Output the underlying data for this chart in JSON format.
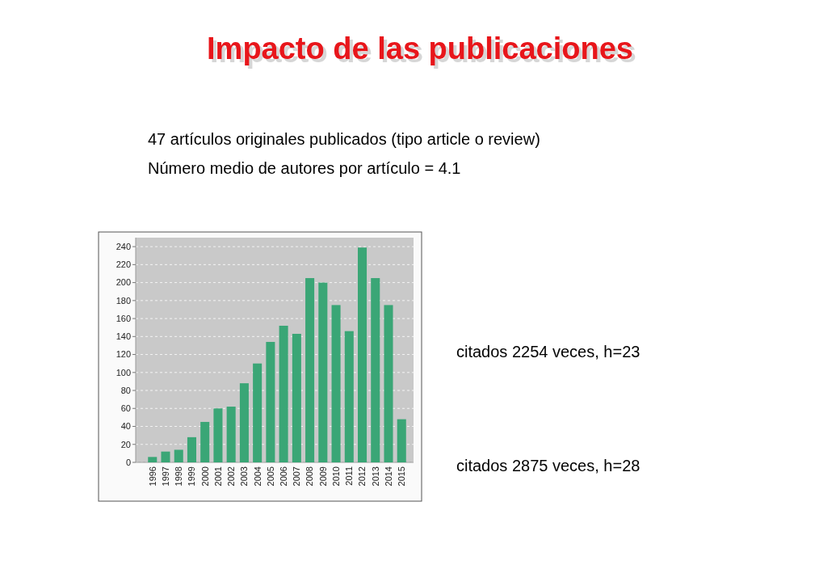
{
  "chart_data": {
    "type": "bar",
    "title": "Impacto de las publicaciones",
    "subtitle": "47 artículos originales publicados (tipo article o review)",
    "annotations": [
      "Número medio de autores por artículo = 4.1",
      "citados 2254 veces, h=23",
      "citados 2875 veces, h=28"
    ],
    "categories": [
      "1996",
      "1997",
      "1998",
      "1999",
      "2000",
      "2001",
      "2002",
      "2003",
      "2004",
      "2005",
      "2006",
      "2007",
      "2008",
      "2009",
      "2010",
      "2011",
      "2012",
      "2013",
      "2014",
      "2015"
    ],
    "values": [
      6,
      12,
      14,
      28,
      45,
      60,
      62,
      88,
      110,
      134,
      152,
      143,
      205,
      200,
      175,
      146,
      239,
      205,
      175,
      48
    ],
    "color": "#3aa676",
    "ylim": [
      0,
      250
    ],
    "yticks": [
      0,
      20,
      40,
      60,
      80,
      100,
      120,
      140,
      160,
      180,
      200,
      220,
      240
    ],
    "grid": "y"
  }
}
